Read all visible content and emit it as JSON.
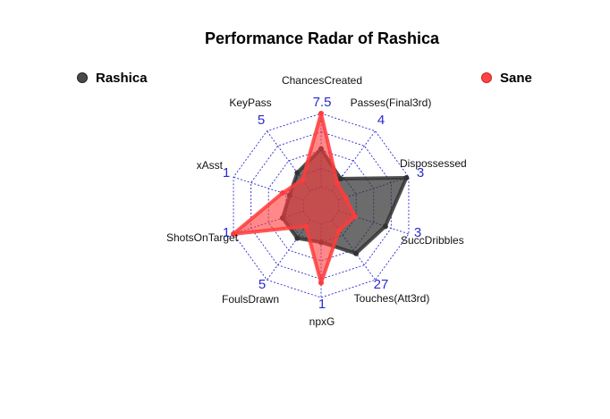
{
  "chart_data": {
    "type": "radar",
    "title": "Performance Radar of Rashica",
    "axes": [
      {
        "label": "ChancesCreated",
        "max": 7.5
      },
      {
        "label": "Passes(Final3rd)",
        "max": 4
      },
      {
        "label": "Dispossessed",
        "max": 3
      },
      {
        "label": "SuccDribbles",
        "max": 3
      },
      {
        "label": "Touches(Att3rd)",
        "max": 27
      },
      {
        "label": "npxG",
        "max": 1
      },
      {
        "label": "FoulsDrawn",
        "max": 5
      },
      {
        "label": "ShotsOnTarget",
        "max": 1
      },
      {
        "label": "xAsst",
        "max": 1
      },
      {
        "label": "KeyPass",
        "max": 5
      }
    ],
    "axis_max_labels": [
      "7.5",
      "4",
      "3",
      "3",
      "27",
      "1",
      "5",
      "1",
      "1",
      "5"
    ],
    "grid_levels": 4,
    "series": [
      {
        "name": "Rashica",
        "color": "#333333",
        "values": [
          3.9,
          0.8,
          2.9,
          2.0,
          15.0,
          0.25,
          1.5,
          0.3,
          0.2,
          1.5
        ]
      },
      {
        "name": "Sane",
        "color": "#ff3b3b",
        "values": [
          7.5,
          0.5,
          0.3,
          0.7,
          4.5,
          0.8,
          0.5,
          1.0,
          0.3,
          0.9
        ]
      }
    ],
    "legend": [
      "top-left",
      "top-right"
    ]
  }
}
